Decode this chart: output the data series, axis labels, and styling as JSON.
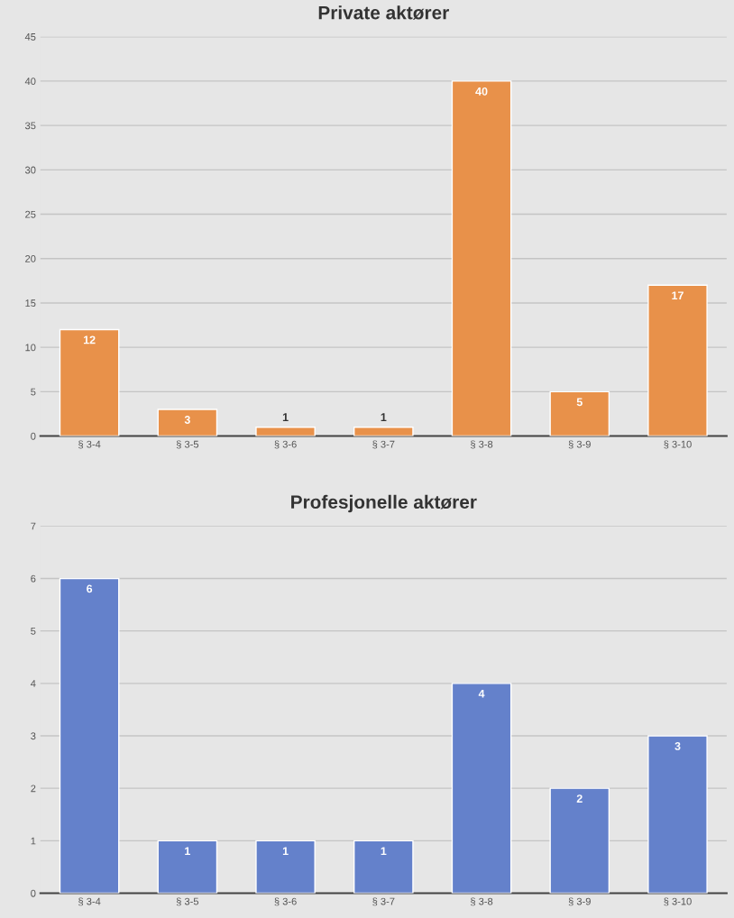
{
  "chart_data": [
    {
      "type": "bar",
      "title": "Private aktører",
      "categories": [
        "§ 3-4",
        "§ 3-5",
        "§ 3-6",
        "§ 3-7",
        "§ 3-8",
        "§ 3-9",
        "§ 3-10"
      ],
      "series": [
        {
          "color": "#e8914a",
          "values": [
            12,
            3,
            1,
            1,
            40,
            5,
            17
          ]
        }
      ],
      "ylim": [
        0,
        45
      ],
      "yticks": [
        0,
        5,
        10,
        15,
        20,
        25,
        30,
        35,
        40,
        45
      ],
      "grid": "y",
      "data_labels": true
    },
    {
      "type": "bar",
      "title": "Profesjonelle aktører",
      "categories": [
        "§ 3-4",
        "§ 3-5",
        "§ 3-6",
        "§ 3-7",
        "§ 3-8",
        "§ 3-9",
        "§ 3-10"
      ],
      "series": [
        {
          "color": "#6481cb",
          "values": [
            6,
            1,
            1,
            1,
            4,
            2,
            3
          ]
        }
      ],
      "ylim": [
        0,
        7
      ],
      "yticks": [
        0,
        1,
        2,
        3,
        4,
        5,
        6,
        7
      ],
      "grid": "y",
      "data_labels": true
    }
  ]
}
